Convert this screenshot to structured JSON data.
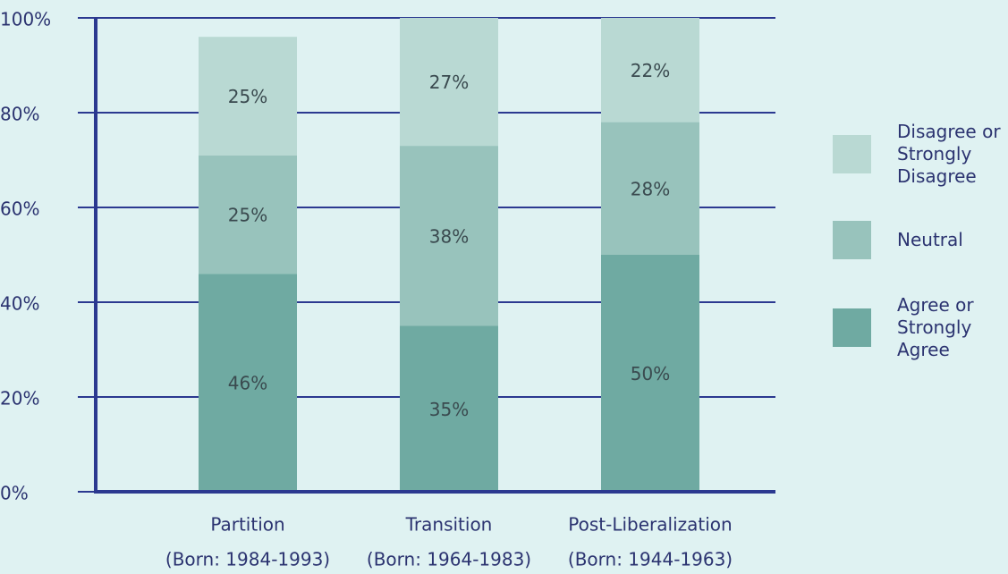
{
  "chart_data": {
    "type": "stacked_bar",
    "categories": [
      "Partition",
      "Transition",
      "Post-Liberalization"
    ],
    "category_sublabels": [
      "(Born: 1984-1993)",
      "(Born: 1964-1983)",
      "(Born: 1944-1963)"
    ],
    "series": [
      {
        "name": "Agree or Strongly Agree",
        "color": "#6faaa2",
        "values": [
          46,
          35,
          50
        ],
        "value_labels": [
          "46%",
          "35%",
          "50%"
        ]
      },
      {
        "name": "Neutral",
        "color": "#98c3bc",
        "values": [
          25,
          38,
          28
        ],
        "value_labels": [
          "25%",
          "38%",
          "28%"
        ]
      },
      {
        "name": "Disagree or Strongly Disagree",
        "color": "#b9d9d3",
        "values": [
          25,
          27,
          22
        ],
        "value_labels": [
          "25%",
          "27%",
          "22%"
        ]
      }
    ],
    "ylim": [
      0,
      100
    ],
    "yticks": [
      {
        "value": 0,
        "label": "0%"
      },
      {
        "value": 20,
        "label": "20%"
      },
      {
        "value": 40,
        "label": "40%"
      },
      {
        "value": 60,
        "label": "60%"
      },
      {
        "value": 80,
        "label": "80%"
      },
      {
        "value": 100,
        "label": "100%"
      }
    ],
    "grid": true,
    "legend": "right"
  }
}
